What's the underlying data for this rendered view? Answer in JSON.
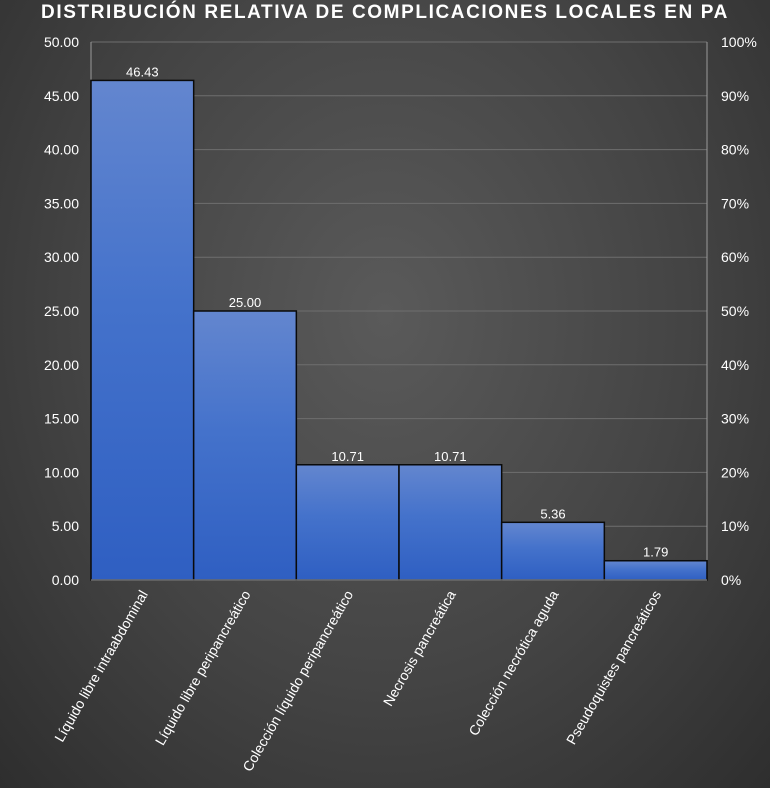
{
  "chart_data": {
    "type": "bar",
    "title": "DISTRIBUCIÓN RELATIVA DE COMPLICACIONES LOCALES EN PA",
    "categories": [
      "Líquido libre intraabdominal",
      "Líquido libre peripancreático",
      "Colección líquido peripancreático",
      "Necrosis pancreática",
      "Colección necrótica aguda",
      "Pseudoquistes pancreáticos"
    ],
    "values": [
      46.43,
      25.0,
      10.71,
      10.71,
      5.36,
      1.79
    ],
    "data_labels": [
      "46.43",
      "25.00",
      "10.71",
      "10.71",
      "5.36",
      "1.79"
    ],
    "ylim": [
      0,
      50
    ],
    "y_ticks": [
      "0.00",
      "5.00",
      "10.00",
      "15.00",
      "20.00",
      "25.00",
      "30.00",
      "35.00",
      "40.00",
      "45.00",
      "50.00"
    ],
    "y2lim": [
      0,
      100
    ],
    "y2_ticks": [
      "0%",
      "10%",
      "20%",
      "30%",
      "40%",
      "50%",
      "60%",
      "70%",
      "80%",
      "90%",
      "100%"
    ],
    "xlabel": "",
    "ylabel": "",
    "grid": true,
    "bar_color": "#3d6cc8"
  }
}
